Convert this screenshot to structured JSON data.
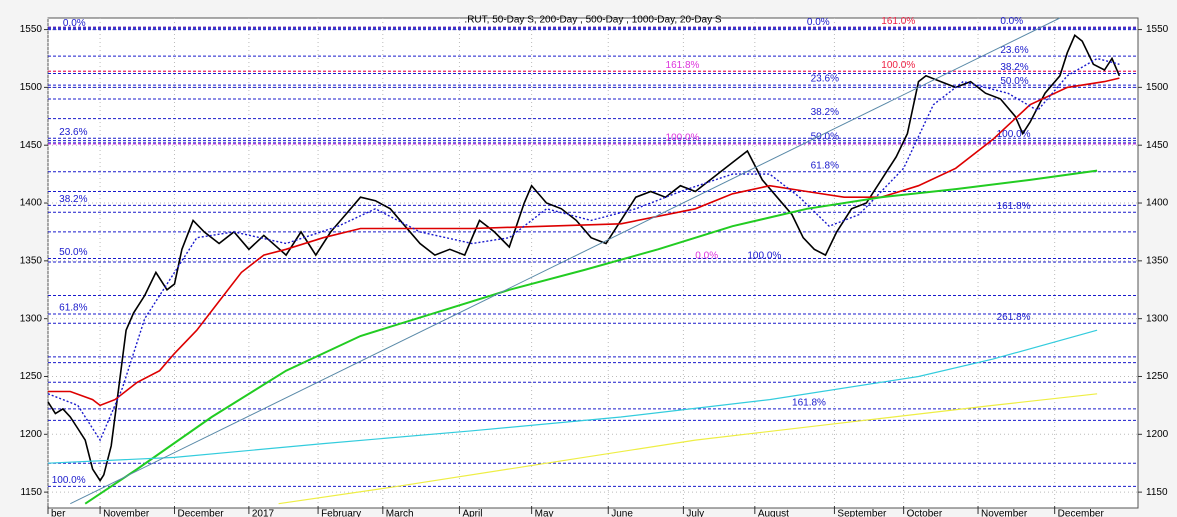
{
  "chart_data": {
    "type": "line",
    "title": ".RUT, 50-Day S, 200-Day , 500-Day , 1000-Day, 20-Day S",
    "xlim": [
      0.3,
      14.95
    ],
    "xticks": [
      {
        "value": 0.3,
        "label": "ber"
      },
      {
        "value": 1,
        "label": "November"
      },
      {
        "value": 2,
        "label": "December"
      },
      {
        "value": 3,
        "label": "2017"
      },
      {
        "value": 3.93,
        "label": "February"
      },
      {
        "value": 4.8,
        "label": "March"
      },
      {
        "value": 5.83,
        "label": "April"
      },
      {
        "value": 6.8,
        "label": "May"
      },
      {
        "value": 7.83,
        "label": "June"
      },
      {
        "value": 8.84,
        "label": "July"
      },
      {
        "value": 9.8,
        "label": "August"
      },
      {
        "value": 10.87,
        "label": "September"
      },
      {
        "value": 11.8,
        "label": "October"
      },
      {
        "value": 12.8,
        "label": "November"
      },
      {
        "value": 13.83,
        "label": "December"
      }
    ],
    "ylim": [
      1138,
      1560
    ],
    "yticks": [
      1150,
      1200,
      1250,
      1300,
      1350,
      1400,
      1450,
      1500,
      1550
    ],
    "grid": true,
    "series": [
      {
        "color": "#000000",
        "width": 1.6,
        "dash": "none",
        "x": [
          0.3,
          0.4,
          0.5,
          0.6,
          0.7,
          0.8,
          0.9,
          1.0,
          1.05,
          1.15,
          1.25,
          1.35,
          1.45,
          1.6,
          1.75,
          1.9,
          2.0,
          2.1,
          2.25,
          2.4,
          2.6,
          2.8,
          3.0,
          3.2,
          3.5,
          3.7,
          3.9,
          4.1,
          4.3,
          4.5,
          4.7,
          4.9,
          5.1,
          5.3,
          5.5,
          5.7,
          5.9,
          6.1,
          6.3,
          6.5,
          6.7,
          6.8,
          7.0,
          7.2,
          7.4,
          7.6,
          7.8,
          8.0,
          8.2,
          8.4,
          8.6,
          8.8,
          9.0,
          9.2,
          9.4,
          9.6,
          9.7,
          9.9,
          10.1,
          10.3,
          10.45,
          10.6,
          10.75,
          10.9,
          11.1,
          11.3,
          11.5,
          11.7,
          11.85,
          12.0,
          12.1,
          12.3,
          12.5,
          12.7,
          12.9,
          13.1,
          13.3,
          13.4,
          13.5,
          13.7,
          13.9,
          14.0,
          14.1,
          14.2,
          14.35,
          14.5,
          14.6,
          14.7
        ],
        "values": [
          1228,
          1218,
          1222,
          1215,
          1205,
          1195,
          1170,
          1160,
          1165,
          1190,
          1240,
          1290,
          1305,
          1320,
          1340,
          1325,
          1330,
          1360,
          1385,
          1375,
          1365,
          1375,
          1360,
          1372,
          1355,
          1375,
          1355,
          1375,
          1390,
          1405,
          1402,
          1395,
          1380,
          1365,
          1355,
          1360,
          1355,
          1385,
          1375,
          1362,
          1400,
          1415,
          1400,
          1395,
          1385,
          1370,
          1365,
          1385,
          1405,
          1410,
          1405,
          1415,
          1410,
          1420,
          1430,
          1440,
          1445,
          1420,
          1405,
          1390,
          1370,
          1360,
          1355,
          1375,
          1395,
          1400,
          1420,
          1440,
          1460,
          1505,
          1510,
          1505,
          1500,
          1505,
          1495,
          1490,
          1475,
          1460,
          1470,
          1495,
          1510,
          1530,
          1545,
          1540,
          1520,
          1515,
          1525,
          1510
        ]
      },
      {
        "color": "#dd0000",
        "width": 1.6,
        "dash": "none",
        "x": [
          0.3,
          0.6,
          0.9,
          1.0,
          1.2,
          1.5,
          1.8,
          2.0,
          2.3,
          2.6,
          2.9,
          3.2,
          3.5,
          4.0,
          4.5,
          5.0,
          6.0,
          7.0,
          8.0,
          9.0,
          9.5,
          10.0,
          10.5,
          11.0,
          11.5,
          12.0,
          12.5,
          13.0,
          13.5,
          14.0,
          14.5,
          14.7
        ],
        "values": [
          1237,
          1237,
          1230,
          1225,
          1230,
          1245,
          1255,
          1270,
          1290,
          1315,
          1340,
          1355,
          1360,
          1370,
          1378,
          1378,
          1378,
          1380,
          1382,
          1395,
          1408,
          1415,
          1410,
          1405,
          1405,
          1415,
          1430,
          1455,
          1485,
          1500,
          1505,
          1508
        ]
      },
      {
        "color": "#1a1acc",
        "width": 1.4,
        "dash": "2 2",
        "x": [
          0.3,
          0.7,
          1.0,
          1.3,
          1.6,
          2.0,
          2.3,
          2.8,
          3.5,
          4.2,
          4.7,
          5.3,
          6.0,
          6.5,
          7.0,
          7.6,
          8.2,
          8.8,
          9.5,
          10.0,
          10.4,
          10.8,
          11.2,
          11.8,
          12.2,
          12.6,
          13.2,
          13.6,
          14.0,
          14.4,
          14.7
        ],
        "values": [
          1235,
          1225,
          1195,
          1240,
          1300,
          1340,
          1370,
          1375,
          1365,
          1380,
          1395,
          1375,
          1365,
          1370,
          1395,
          1385,
          1395,
          1410,
          1425,
          1425,
          1405,
          1380,
          1390,
          1430,
          1485,
          1505,
          1495,
          1480,
          1510,
          1525,
          1520
        ]
      },
      {
        "color": "#22cc22",
        "width": 2,
        "dash": "none",
        "x": [
          0.8,
          1.5,
          2.5,
          3.5,
          4.5,
          5.5,
          6.5,
          7.5,
          8.5,
          9.5,
          10.5,
          11.5,
          12.5,
          13.5,
          14.4
        ],
        "values": [
          1140,
          1170,
          1215,
          1255,
          1285,
          1305,
          1325,
          1342,
          1360,
          1380,
          1395,
          1405,
          1412,
          1420,
          1428
        ]
      },
      {
        "color": "#33ccdd",
        "width": 1.2,
        "dash": "none",
        "x": [
          0.3,
          2,
          4,
          6,
          8,
          10,
          12,
          13,
          14.4
        ],
        "values": [
          1175,
          1180,
          1192,
          1203,
          1215,
          1230,
          1250,
          1265,
          1290
        ]
      },
      {
        "color": "#eeee44",
        "width": 1.2,
        "dash": "none",
        "x": [
          3.4,
          5,
          7,
          9,
          11,
          13,
          14.4
        ],
        "values": [
          1140,
          1155,
          1175,
          1195,
          1210,
          1225,
          1235
        ]
      },
      {
        "color": "#5a8aa8",
        "width": 1,
        "dash": "none",
        "x": [
          0.6,
          13.9
        ],
        "values": [
          1140,
          1560
        ]
      }
    ],
    "levels": [
      {
        "value": 1550,
        "color": "#1a1acc",
        "label": "0.0%",
        "x": 0.5
      },
      {
        "value": 1456,
        "color": "#1a1acc",
        "label": "23.6%",
        "x": 0.45
      },
      {
        "value": 1398,
        "color": "#1a1acc",
        "label": "38.2%",
        "x": 0.45
      },
      {
        "value": 1352,
        "color": "#1a1acc",
        "label": "50.0%",
        "x": 0.45
      },
      {
        "value": 1304,
        "color": "#1a1acc",
        "label": "61.8%",
        "x": 0.45
      },
      {
        "value": 1155,
        "color": "#1a1acc",
        "label": "100.0%",
        "x": 0.35
      },
      {
        "value": 1551,
        "color": "#1a1acc",
        "label": "0.0%",
        "x": 10.5
      },
      {
        "value": 1502,
        "color": "#1a1acc",
        "label": "23.6%",
        "x": 10.55
      },
      {
        "value": 1473,
        "color": "#1a1acc",
        "label": "38.2%",
        "x": 10.55
      },
      {
        "value": 1452,
        "color": "#1a1acc",
        "label": "50.0%",
        "x": 10.55
      },
      {
        "value": 1427,
        "color": "#1a1acc",
        "label": "61.8%",
        "x": 10.55
      },
      {
        "value": 1222,
        "color": "#1a1acc",
        "label": "161.8%",
        "x": 10.3
      },
      {
        "value": 1514,
        "color": "#dd33dd",
        "label": "161.8%",
        "x": 8.6
      },
      {
        "value": 1451,
        "color": "#dd33dd",
        "label": "100.0%",
        "x": 8.6
      },
      {
        "value": 1349,
        "color": "#dd33dd",
        "label": "0.0%",
        "x": 9.0
      },
      {
        "value": 1349,
        "color": "#1a1acc",
        "label": "100.0%",
        "x": 9.7
      },
      {
        "value": 1552,
        "color": "#ee2244",
        "label": "161.0%",
        "x": 11.5
      },
      {
        "value": 1514,
        "color": "#ee2244",
        "label": "100.0%",
        "x": 11.5
      },
      {
        "value": 1552,
        "color": "#1a1acc",
        "label": "0.0%",
        "x": 13.1
      },
      {
        "value": 1527,
        "color": "#1a1acc",
        "label": "23.6%",
        "x": 13.1
      },
      {
        "value": 1512,
        "color": "#1a1acc",
        "label": "38.2%",
        "x": 13.1
      },
      {
        "value": 1500,
        "color": "#1a1acc",
        "label": "50.0%",
        "x": 13.1
      },
      {
        "value": 1454,
        "color": "#1a1acc",
        "label": "100.0%",
        "x": 13.05
      },
      {
        "value": 1392,
        "color": "#1a1acc",
        "label": "161.8%",
        "x": 13.05
      },
      {
        "value": 1296,
        "color": "#1a1acc",
        "label": "261.8%",
        "x": 13.05
      },
      {
        "value": 1320,
        "color": "#1a1acc"
      },
      {
        "value": 1267,
        "color": "#1a1acc"
      },
      {
        "value": 1262,
        "color": "#1a1acc"
      },
      {
        "value": 1245,
        "color": "#1a1acc"
      },
      {
        "value": 1212,
        "color": "#1a1acc"
      },
      {
        "value": 1175,
        "color": "#1a1acc"
      },
      {
        "value": 1490,
        "color": "#1a1acc"
      },
      {
        "value": 1410,
        "color": "#1a1acc"
      },
      {
        "value": 1375,
        "color": "#1a1acc"
      }
    ]
  }
}
